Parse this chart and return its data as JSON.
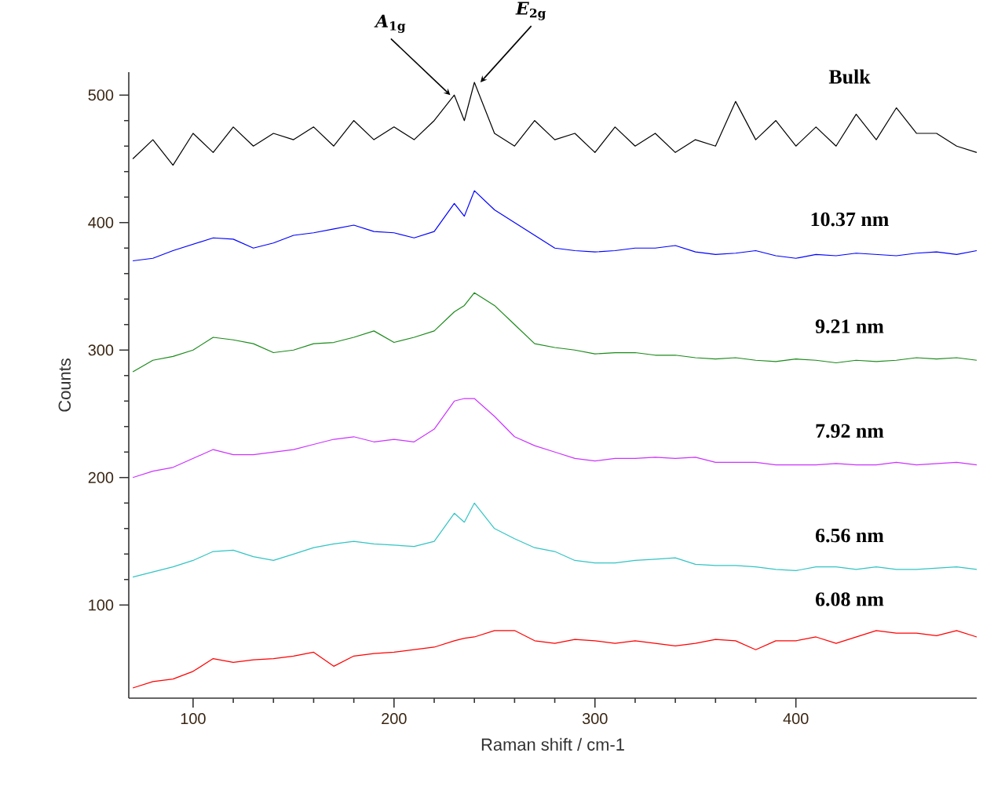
{
  "chart_data": {
    "type": "line",
    "xlabel": "Raman shift / cm-1",
    "ylabel": "Counts",
    "x": [
      70,
      80,
      90,
      100,
      110,
      120,
      130,
      140,
      150,
      160,
      170,
      180,
      190,
      200,
      210,
      220,
      230,
      235,
      240,
      250,
      260,
      270,
      280,
      290,
      300,
      310,
      320,
      330,
      340,
      350,
      360,
      370,
      380,
      390,
      400,
      410,
      420,
      430,
      440,
      450,
      460,
      470,
      480,
      490
    ],
    "xlim": [
      68,
      490
    ],
    "ylim": [
      27,
      518
    ],
    "xticks": [
      100,
      200,
      300,
      400
    ],
    "yticks": [
      100,
      200,
      300,
      400,
      500
    ],
    "grid": false,
    "marker": "none",
    "line_style": "solid",
    "series": [
      {
        "name": "**Bulk**",
        "color": "#000000",
        "values": [
          450,
          465,
          445,
          470,
          455,
          475,
          460,
          470,
          465,
          475,
          460,
          480,
          465,
          475,
          465,
          480,
          500,
          480,
          510,
          470,
          460,
          480,
          465,
          470,
          455,
          475,
          460,
          470,
          455,
          465,
          460,
          495,
          465,
          480,
          460,
          475,
          460,
          485,
          465,
          490,
          470,
          470,
          460,
          455
        ]
      },
      {
        "name": "**10.37 nm**",
        "color": "#0000ff",
        "values": [
          370,
          372,
          378,
          383,
          388,
          387,
          380,
          384,
          390,
          392,
          395,
          398,
          393,
          392,
          388,
          393,
          415,
          405,
          425,
          410,
          400,
          390,
          380,
          378,
          377,
          378,
          380,
          380,
          382,
          377,
          375,
          376,
          378,
          374,
          372,
          375,
          374,
          376,
          375,
          374,
          376,
          377,
          375,
          378
        ]
      },
      {
        "name": "**9.21 nm**",
        "color": "#1a8a1a",
        "values": [
          283,
          292,
          295,
          300,
          310,
          308,
          305,
          298,
          300,
          305,
          306,
          310,
          315,
          306,
          310,
          315,
          330,
          335,
          345,
          335,
          320,
          305,
          302,
          300,
          297,
          298,
          298,
          296,
          296,
          294,
          293,
          294,
          292,
          291,
          293,
          292,
          290,
          292,
          291,
          292,
          294,
          293,
          294,
          292
        ]
      },
      {
        "name": "**7.92 nm**",
        "color": "#cc33ff",
        "values": [
          200,
          205,
          208,
          215,
          222,
          218,
          218,
          220,
          222,
          226,
          230,
          232,
          228,
          230,
          228,
          238,
          260,
          262,
          262,
          248,
          232,
          225,
          220,
          215,
          213,
          215,
          215,
          216,
          215,
          216,
          212,
          212,
          212,
          210,
          210,
          210,
          211,
          210,
          210,
          212,
          210,
          211,
          212,
          210
        ]
      },
      {
        "name": "**6.56 nm**",
        "color": "#33c4c4",
        "values": [
          122,
          126,
          130,
          135,
          142,
          143,
          138,
          135,
          140,
          145,
          148,
          150,
          148,
          147,
          146,
          150,
          172,
          165,
          180,
          160,
          152,
          145,
          142,
          135,
          133,
          133,
          135,
          136,
          137,
          132,
          131,
          131,
          130,
          128,
          127,
          130,
          130,
          128,
          130,
          128,
          128,
          129,
          130,
          128
        ]
      },
      {
        "name": "**6.08 nm**",
        "color": "#ff0000",
        "values": [
          35,
          40,
          42,
          48,
          58,
          55,
          57,
          58,
          60,
          63,
          52,
          60,
          62,
          63,
          65,
          67,
          72,
          74,
          75,
          80,
          80,
          72,
          70,
          73,
          72,
          70,
          72,
          70,
          68,
          70,
          73,
          72,
          65,
          72,
          72,
          75,
          70,
          75,
          80,
          78,
          78,
          76,
          80,
          75
        ]
      }
    ],
    "annotations": [
      {
        "text": "*A*$_{1g}$",
        "x": 228,
        "y": 500
      },
      {
        "text": "*E*$_{2g}$",
        "x": 243,
        "y": 510
      }
    ]
  }
}
